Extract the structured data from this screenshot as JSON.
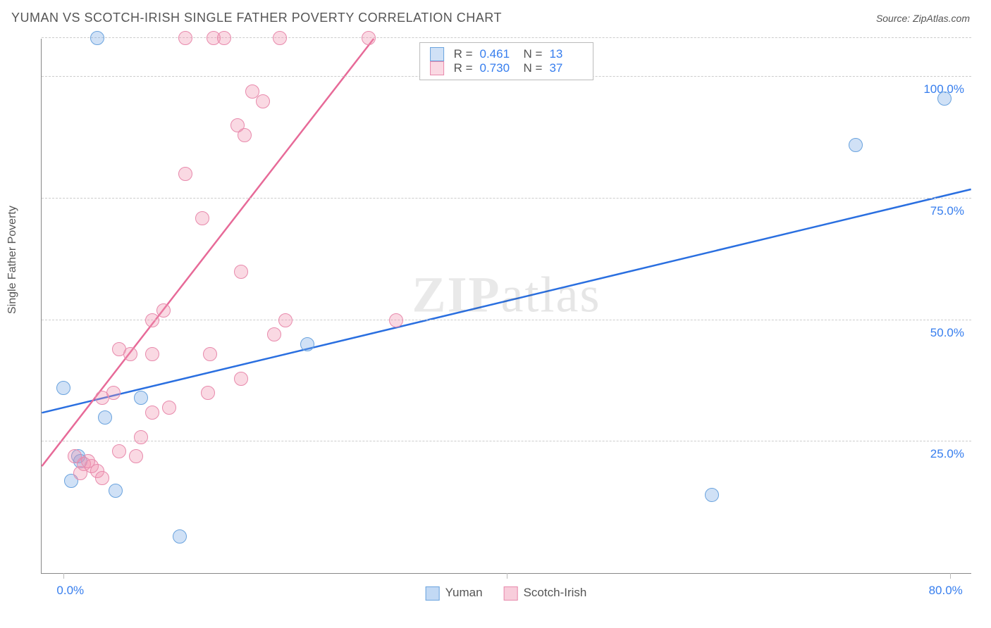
{
  "title": "YUMAN VS SCOTCH-IRISH SINGLE FATHER POVERTY CORRELATION CHART",
  "source": "Source: ZipAtlas.com",
  "ylabel": "Single Father Poverty",
  "watermark": "ZIPatlas",
  "chart": {
    "type": "scatter",
    "background_color": "#ffffff",
    "grid_color": "#cccccc",
    "axis_color": "#888888",
    "xlim": [
      -2,
      82
    ],
    "ylim": [
      -2,
      108
    ],
    "xtick_labels": [
      {
        "v": 0,
        "label": "0.0%"
      },
      {
        "v": 80,
        "label": "80.0%"
      }
    ],
    "xtick_marks": [
      0,
      40,
      80
    ],
    "ytick_labels": [
      {
        "v": 25,
        "label": "25.0%"
      },
      {
        "v": 50,
        "label": "50.0%"
      },
      {
        "v": 75,
        "label": "75.0%"
      },
      {
        "v": 100,
        "label": "100.0%"
      }
    ],
    "grid_y": [
      25,
      50,
      75,
      100,
      108
    ],
    "marker_radius": 10,
    "marker_border_width": 1.2,
    "line_width": 2.5,
    "series": [
      {
        "name": "Yuman",
        "color_fill": "rgba(120,170,230,0.35)",
        "color_stroke": "#6aa3de",
        "line_color": "#2a6fe0",
        "R": "0.461",
        "N": "13",
        "points": [
          [
            0,
            36
          ],
          [
            3,
            108
          ],
          [
            0.7,
            17
          ],
          [
            1.3,
            22
          ],
          [
            3.7,
            30
          ],
          [
            4.7,
            15
          ],
          [
            10.5,
            5.5
          ],
          [
            22,
            45
          ],
          [
            58.5,
            14
          ],
          [
            71.5,
            86
          ],
          [
            79.5,
            95.5
          ],
          [
            1.5,
            21
          ],
          [
            7,
            34
          ]
        ],
        "trend": {
          "x1": -2,
          "y1": 31,
          "x2": 82,
          "y2": 77
        }
      },
      {
        "name": "Scotch-Irish",
        "color_fill": "rgba(240,145,175,0.35)",
        "color_stroke": "#e88aac",
        "line_color": "#e76a98",
        "R": "0.730",
        "N": "37",
        "points": [
          [
            11,
            108
          ],
          [
            13.5,
            108
          ],
          [
            14.5,
            108
          ],
          [
            19.5,
            108
          ],
          [
            27.5,
            108
          ],
          [
            17,
            97
          ],
          [
            18,
            95
          ],
          [
            15.7,
            90
          ],
          [
            16.3,
            88
          ],
          [
            11,
            80
          ],
          [
            12.5,
            71
          ],
          [
            16,
            60
          ],
          [
            9,
            52
          ],
          [
            8,
            50
          ],
          [
            20,
            50
          ],
          [
            30,
            50
          ],
          [
            19,
            47
          ],
          [
            5,
            44
          ],
          [
            6,
            43
          ],
          [
            8,
            43
          ],
          [
            13.2,
            43
          ],
          [
            16,
            38
          ],
          [
            13,
            35
          ],
          [
            4.5,
            35
          ],
          [
            3.5,
            34
          ],
          [
            8,
            31
          ],
          [
            9.5,
            32
          ],
          [
            7,
            26
          ],
          [
            5,
            23
          ],
          [
            6.5,
            22
          ],
          [
            1.8,
            20.5
          ],
          [
            2.5,
            20
          ],
          [
            3,
            19
          ],
          [
            1.5,
            18.5
          ],
          [
            3.5,
            17.5
          ],
          [
            1,
            22
          ],
          [
            2.2,
            21
          ]
        ],
        "trend": {
          "x1": -2,
          "y1": 20,
          "x2": 28,
          "y2": 108
        }
      }
    ]
  },
  "legend_top": {
    "r_key": "R  =",
    "n_key": "N  ="
  },
  "legend_bot": {
    "items": [
      {
        "label": "Yuman",
        "fill": "rgba(120,170,230,0.45)",
        "stroke": "#6aa3de"
      },
      {
        "label": "Scotch-Irish",
        "fill": "rgba(240,145,175,0.45)",
        "stroke": "#e88aac"
      }
    ]
  }
}
